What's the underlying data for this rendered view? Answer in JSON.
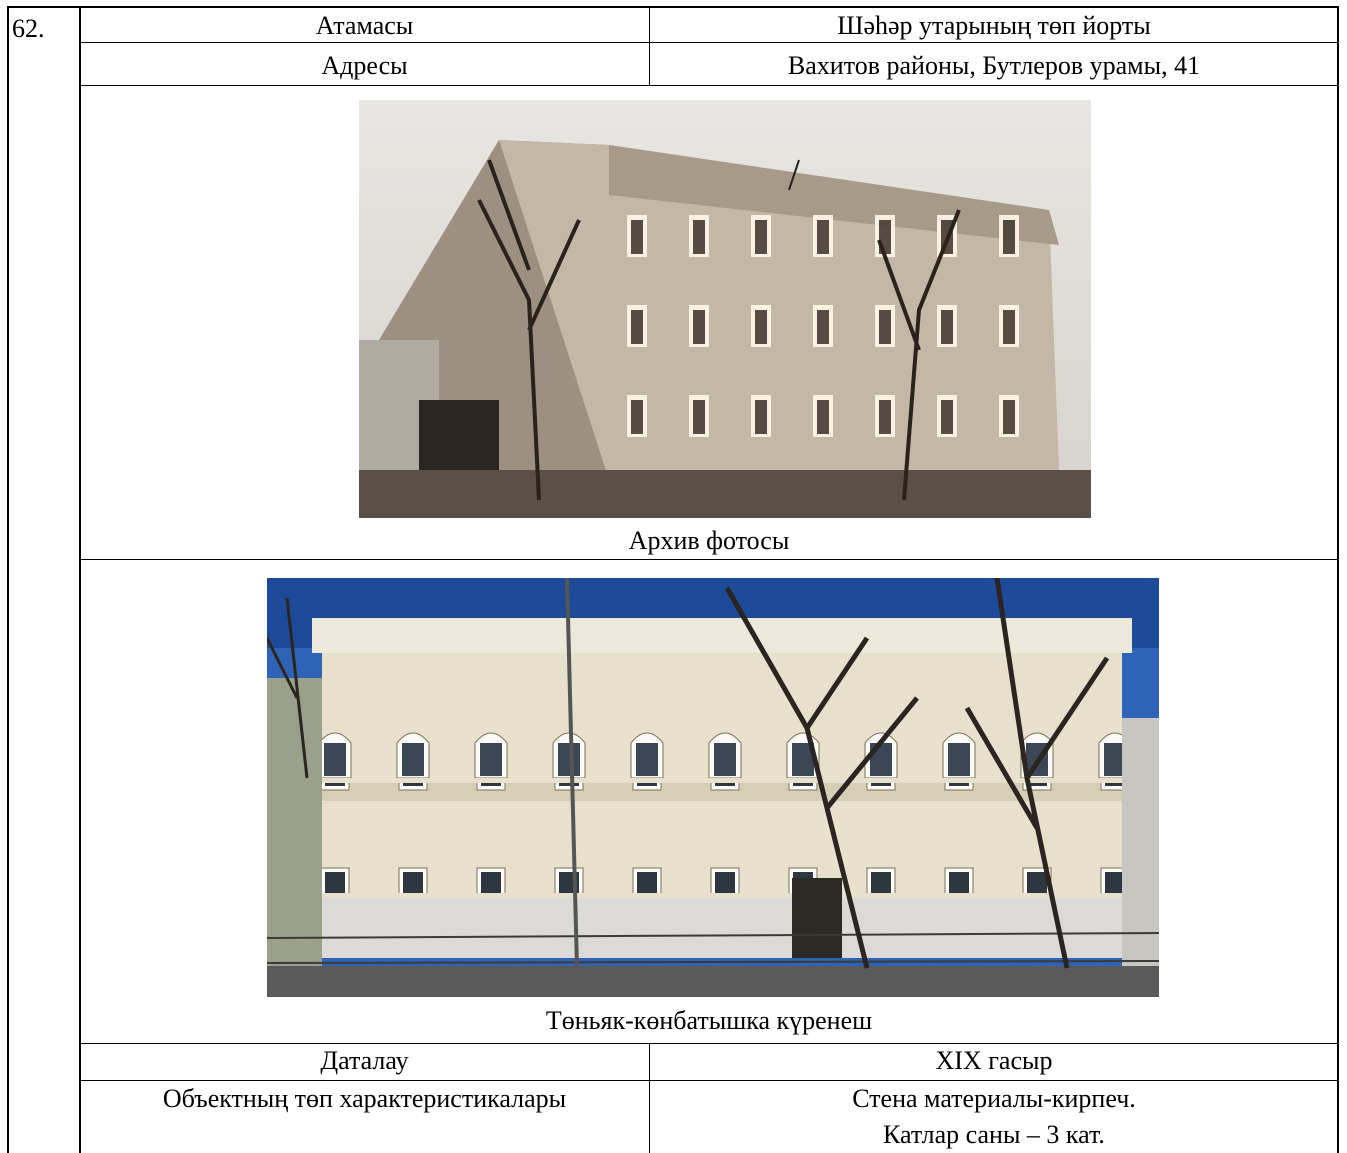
{
  "table": {
    "number": "62.",
    "rows": [
      [
        "Атамасы",
        "Шәһәр утарының төп йорты"
      ],
      [
        "Адресы",
        "Вахитов районы, Бутлеров урамы, 41"
      ]
    ],
    "photos": [
      {
        "caption": "Архив фотосы"
      },
      {
        "caption": "Төньяк-көнбатышка күренеш"
      }
    ],
    "dating": [
      "Даталау",
      "XIX гасыр"
    ],
    "characteristics": {
      "label": "Объектның төп характеристикалары",
      "lines": [
        "Стена материалы-кирпеч.",
        "Катлар саны – 3 кат."
      ]
    }
  }
}
